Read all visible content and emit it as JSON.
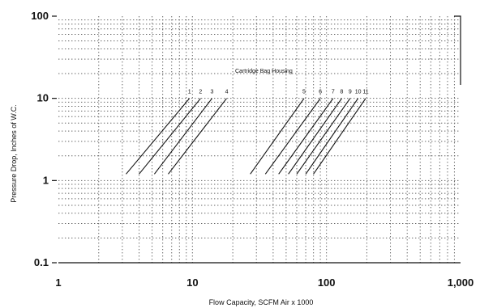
{
  "chart_data": {
    "type": "line",
    "title": "",
    "xlabel": "Flow Capacity, SCFM Air x 1000",
    "ylabel": "Pressure Drop, Inches of W.C.",
    "x_scale": "log",
    "y_scale": "log",
    "xlim": [
      1,
      1000
    ],
    "ylim": [
      0.1,
      100
    ],
    "x_ticks": [
      {
        "value": 1,
        "label": "1"
      },
      {
        "value": 10,
        "label": "10"
      },
      {
        "value": 100,
        "label": "100"
      },
      {
        "value": 1000,
        "label": "1,000"
      }
    ],
    "y_ticks": [
      {
        "value": 0.1,
        "label": "0.1"
      },
      {
        "value": 1,
        "label": "1"
      },
      {
        "value": 10,
        "label": "10"
      },
      {
        "value": 100,
        "label": "100"
      }
    ],
    "grid": true,
    "annotation": "Cartridge Bag Housing",
    "series": [
      {
        "name": "1",
        "x": [
          3.2,
          9.5
        ],
        "y": [
          1.2,
          10
        ]
      },
      {
        "name": "2",
        "x": [
          4.0,
          11.5
        ],
        "y": [
          1.2,
          10
        ]
      },
      {
        "name": "3",
        "x": [
          5.2,
          14.0
        ],
        "y": [
          1.2,
          10
        ]
      },
      {
        "name": "4",
        "x": [
          6.6,
          18.0
        ],
        "y": [
          1.2,
          10
        ]
      },
      {
        "name": "5",
        "x": [
          27,
          68
        ],
        "y": [
          1.2,
          10
        ]
      },
      {
        "name": "6",
        "x": [
          35,
          90
        ],
        "y": [
          1.2,
          10
        ]
      },
      {
        "name": "7",
        "x": [
          44,
          112
        ],
        "y": [
          1.2,
          10
        ]
      },
      {
        "name": "8",
        "x": [
          52,
          130
        ],
        "y": [
          1.2,
          10
        ]
      },
      {
        "name": "9",
        "x": [
          60,
          150
        ],
        "y": [
          1.2,
          10
        ]
      },
      {
        "name": "10",
        "x": [
          70,
          172
        ],
        "y": [
          1.2,
          10
        ]
      },
      {
        "name": "11",
        "x": [
          80,
          196
        ],
        "y": [
          1.2,
          10
        ]
      }
    ]
  }
}
